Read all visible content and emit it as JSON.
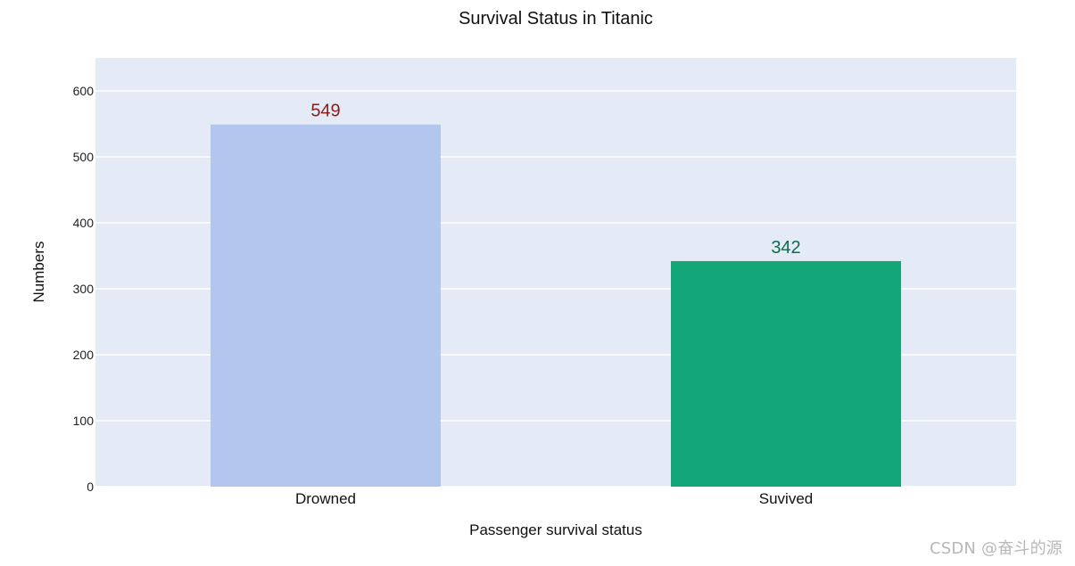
{
  "watermark": "CSDN @奋斗的源",
  "chart_data": {
    "type": "bar",
    "title": "Survival Status in Titanic",
    "xlabel": "Passenger survival status",
    "ylabel": "Numbers",
    "categories": [
      "Drowned",
      "Suvived"
    ],
    "values": [
      549,
      342
    ],
    "data_labels": [
      "549",
      "342"
    ],
    "bar_colors": [
      "#b3c6ee",
      "#12a678"
    ],
    "label_colors": [
      "#8b1c1c",
      "#0e6b4a"
    ],
    "plot_bg": "#e5ebf6",
    "grid": true,
    "grid_color": "#ffffff",
    "ylim": [
      0,
      650
    ],
    "yticks": [
      0,
      100,
      200,
      300,
      400,
      500,
      600
    ]
  }
}
